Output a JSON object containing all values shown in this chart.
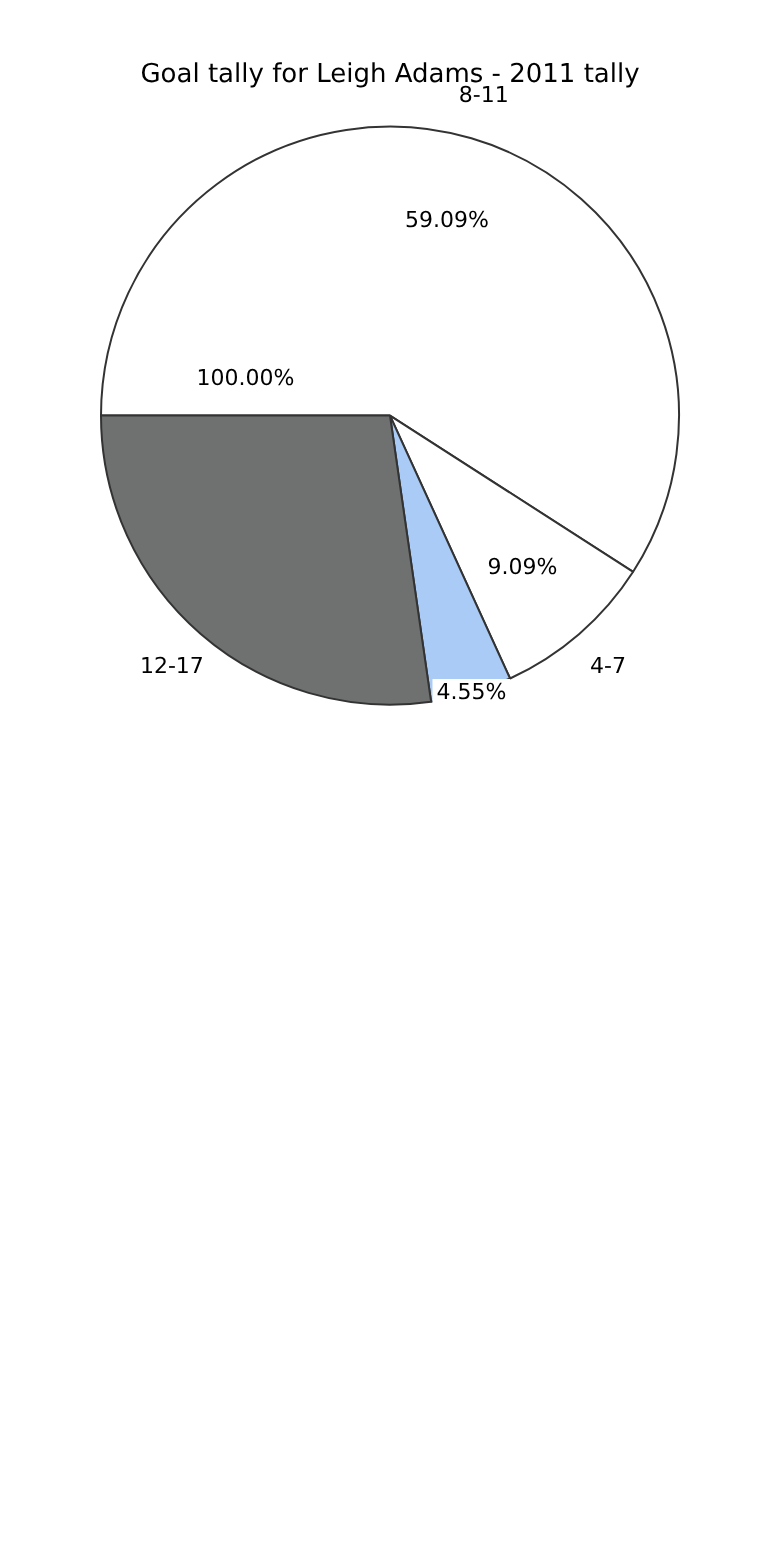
{
  "chart_data": {
    "type": "pie",
    "title": "Goal tally for Leigh Adams - 2011 tally",
    "categories": [
      "8-11",
      "4-7",
      null,
      "12-17"
    ],
    "values": [
      59.09,
      9.09,
      4.55,
      27.27
    ],
    "value_labels": [
      "59.09%",
      "9.09%",
      "4.55%",
      null
    ],
    "annotations": [
      "100.00%"
    ],
    "colors": [
      "#ffffff",
      "#ffffff",
      "#a9cbf5",
      "#6f7070"
    ],
    "legend": false
  }
}
